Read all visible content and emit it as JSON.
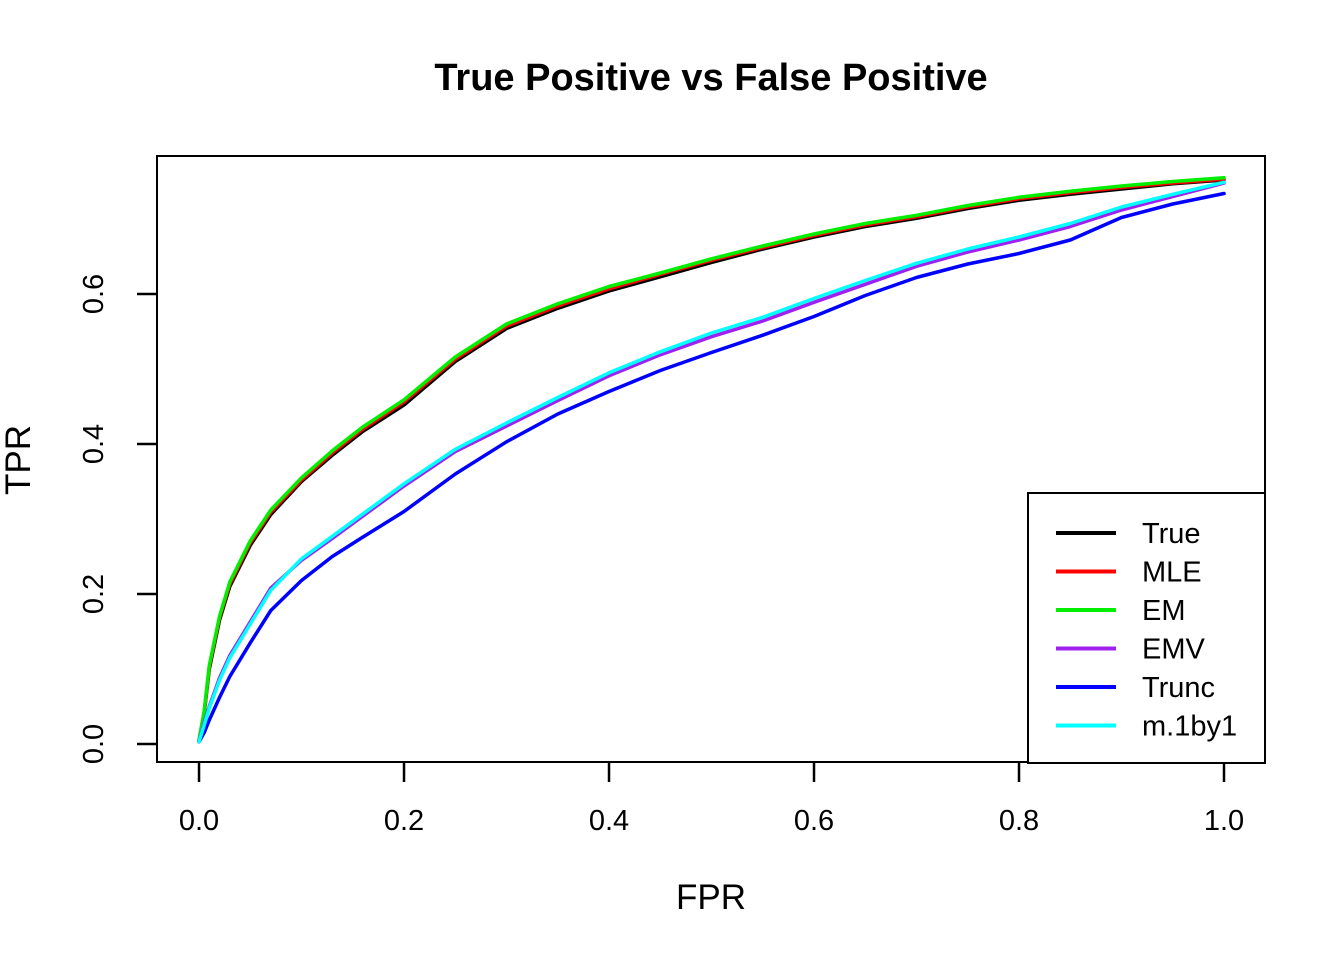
{
  "title": "True Positive vs False Positive",
  "x_axis": {
    "label": "FPR",
    "tick_labels": [
      "0.0",
      "0.2",
      "0.4",
      "0.6",
      "0.8",
      "1.0"
    ],
    "tick_values": [
      0.0,
      0.2,
      0.4,
      0.6,
      0.8,
      1.0
    ]
  },
  "y_axis": {
    "label": "TPR",
    "tick_labels": [
      "0.0",
      "0.2",
      "0.4",
      "0.6"
    ],
    "tick_values": [
      0.0,
      0.2,
      0.4,
      0.6
    ]
  },
  "legend": {
    "position": "bottomright",
    "entries": [
      {
        "label": "True",
        "color": "#000000"
      },
      {
        "label": "MLE",
        "color": "#FF0000"
      },
      {
        "label": "EM",
        "color": "#00EE00"
      },
      {
        "label": "EMV",
        "color": "#A020F0"
      },
      {
        "label": "Trunc",
        "color": "#0000FF"
      },
      {
        "label": "m.1by1",
        "color": "#00FFFF"
      }
    ]
  },
  "chart_data": {
    "type": "line",
    "title": "True Positive vs False Positive",
    "xlabel": "FPR",
    "ylabel": "TPR",
    "xlim": [
      -0.041,
      1.04
    ],
    "ylim": [
      -0.024,
      0.784
    ],
    "grid": false,
    "legend_position": "bottomright",
    "x": [
      0,
      0.005,
      0.01,
      0.02,
      0.03,
      0.05,
      0.07,
      0.1,
      0.13,
      0.16,
      0.2,
      0.25,
      0.3,
      0.35,
      0.4,
      0.45,
      0.5,
      0.55,
      0.6,
      0.65,
      0.7,
      0.75,
      0.8,
      0.85,
      0.9,
      0.95,
      1.0
    ],
    "series": [
      {
        "name": "True",
        "color": "#000000",
        "values": [
          0.005,
          0.04,
          0.1,
          0.165,
          0.21,
          0.265,
          0.306,
          0.35,
          0.385,
          0.417,
          0.452,
          0.51,
          0.554,
          0.581,
          0.604,
          0.623,
          0.642,
          0.66,
          0.676,
          0.69,
          0.701,
          0.714,
          0.725,
          0.733,
          0.74,
          0.747,
          0.752
        ]
      },
      {
        "name": "MLE",
        "color": "#FF0000",
        "values": [
          0.005,
          0.042,
          0.103,
          0.168,
          0.213,
          0.268,
          0.309,
          0.352,
          0.388,
          0.42,
          0.456,
          0.513,
          0.557,
          0.584,
          0.607,
          0.626,
          0.645,
          0.662,
          0.678,
          0.692,
          0.703,
          0.716,
          0.727,
          0.735,
          0.742,
          0.748,
          0.753
        ]
      },
      {
        "name": "EM",
        "color": "#00EE00",
        "values": [
          0.005,
          0.043,
          0.105,
          0.17,
          0.216,
          0.271,
          0.312,
          0.355,
          0.391,
          0.423,
          0.459,
          0.516,
          0.56,
          0.587,
          0.61,
          0.628,
          0.647,
          0.664,
          0.68,
          0.694,
          0.705,
          0.718,
          0.729,
          0.737,
          0.744,
          0.75,
          0.755
        ]
      },
      {
        "name": "EMV",
        "color": "#A020F0",
        "values": [
          0.003,
          0.028,
          0.05,
          0.088,
          0.118,
          0.163,
          0.208,
          0.245,
          0.274,
          0.304,
          0.344,
          0.39,
          0.424,
          0.458,
          0.491,
          0.519,
          0.543,
          0.564,
          0.589,
          0.613,
          0.637,
          0.656,
          0.672,
          0.69,
          0.712,
          0.73,
          0.748
        ]
      },
      {
        "name": "Trunc",
        "color": "#0000FF",
        "values": [
          0.003,
          0.015,
          0.032,
          0.062,
          0.09,
          0.135,
          0.178,
          0.218,
          0.25,
          0.276,
          0.31,
          0.36,
          0.403,
          0.44,
          0.47,
          0.498,
          0.522,
          0.545,
          0.57,
          0.598,
          0.622,
          0.64,
          0.654,
          0.672,
          0.702,
          0.72,
          0.734
        ]
      },
      {
        "name": "m.1by1",
        "color": "#00FFFF",
        "values": [
          0.003,
          0.025,
          0.048,
          0.085,
          0.115,
          0.16,
          0.205,
          0.247,
          0.277,
          0.307,
          0.347,
          0.393,
          0.428,
          0.462,
          0.495,
          0.523,
          0.548,
          0.569,
          0.594,
          0.618,
          0.641,
          0.66,
          0.676,
          0.694,
          0.716,
          0.733,
          0.749
        ]
      }
    ]
  }
}
